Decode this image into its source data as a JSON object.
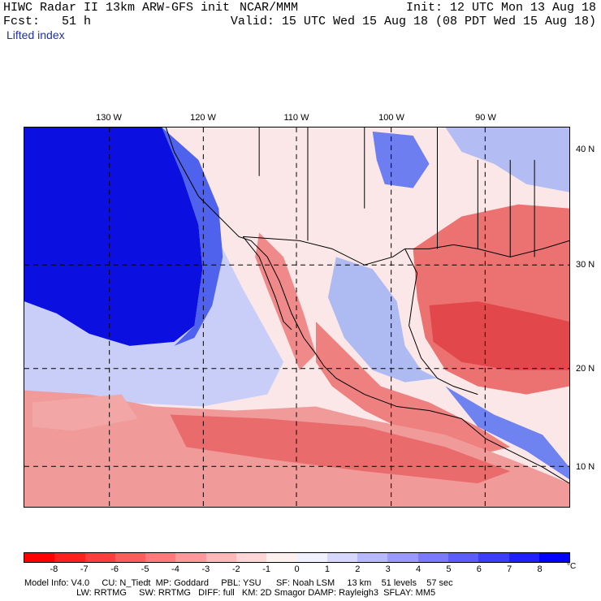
{
  "header": {
    "left_line1": "HIWC Radar II 13km ARW-GFS init",
    "left_line2": "Fcst:   51 h",
    "center": "NCAR/MMM",
    "right_line1": "Init: 12 UTC Mon 13 Aug 18",
    "right_line2": "Valid: 15 UTC Wed 15 Aug 18 (08 PDT Wed 15 Aug 18)",
    "variable": "Lifted index"
  },
  "map": {
    "longitude_labels": [
      "130 W",
      "120 W",
      "110 W",
      "100 W",
      "90 W"
    ],
    "latitude_labels": [
      "40 N",
      "30 N",
      "20 N",
      "10 N"
    ],
    "colors": {
      "deep_blue": "#0000e6",
      "mid_blue": "#4a5ef0",
      "light_blue": "#b9c2f5",
      "white": "#ffffff",
      "light_red": "#f9c2c2",
      "mid_red": "#ef7d7d",
      "deep_red": "#e8484a",
      "border": "#000000"
    }
  },
  "legend": {
    "ticks": [
      "-8",
      "-7",
      "-6",
      "-5",
      "-4",
      "-3",
      "-2",
      "-1",
      "0",
      "1",
      "2",
      "3",
      "4",
      "5",
      "6",
      "7",
      "8"
    ],
    "unit": "°C",
    "colors": [
      "#ff0000",
      "#ff1f1f",
      "#ff3d3d",
      "#ff5c5c",
      "#ff7a7a",
      "#ff9999",
      "#ffb8b8",
      "#ffd6d6",
      "#fff0f0",
      "#f0f0ff",
      "#d6d6ff",
      "#b8b8ff",
      "#9999ff",
      "#7a7aff",
      "#5c5cff",
      "#3d3dff",
      "#1f1fff",
      "#0000ff"
    ]
  },
  "footer": {
    "line1": "Model Info: V4.0     CU: N_Tiedt  MP: Goddard     PBL: YSU      SF: Noah LSM     13 km    51 levels    57 sec",
    "line2": "                     LW: RRTMG     SW: RRTMG   DIFF: full   KM: 2D Smagor DAMP: Rayleigh3  SFLAY: MM5"
  }
}
